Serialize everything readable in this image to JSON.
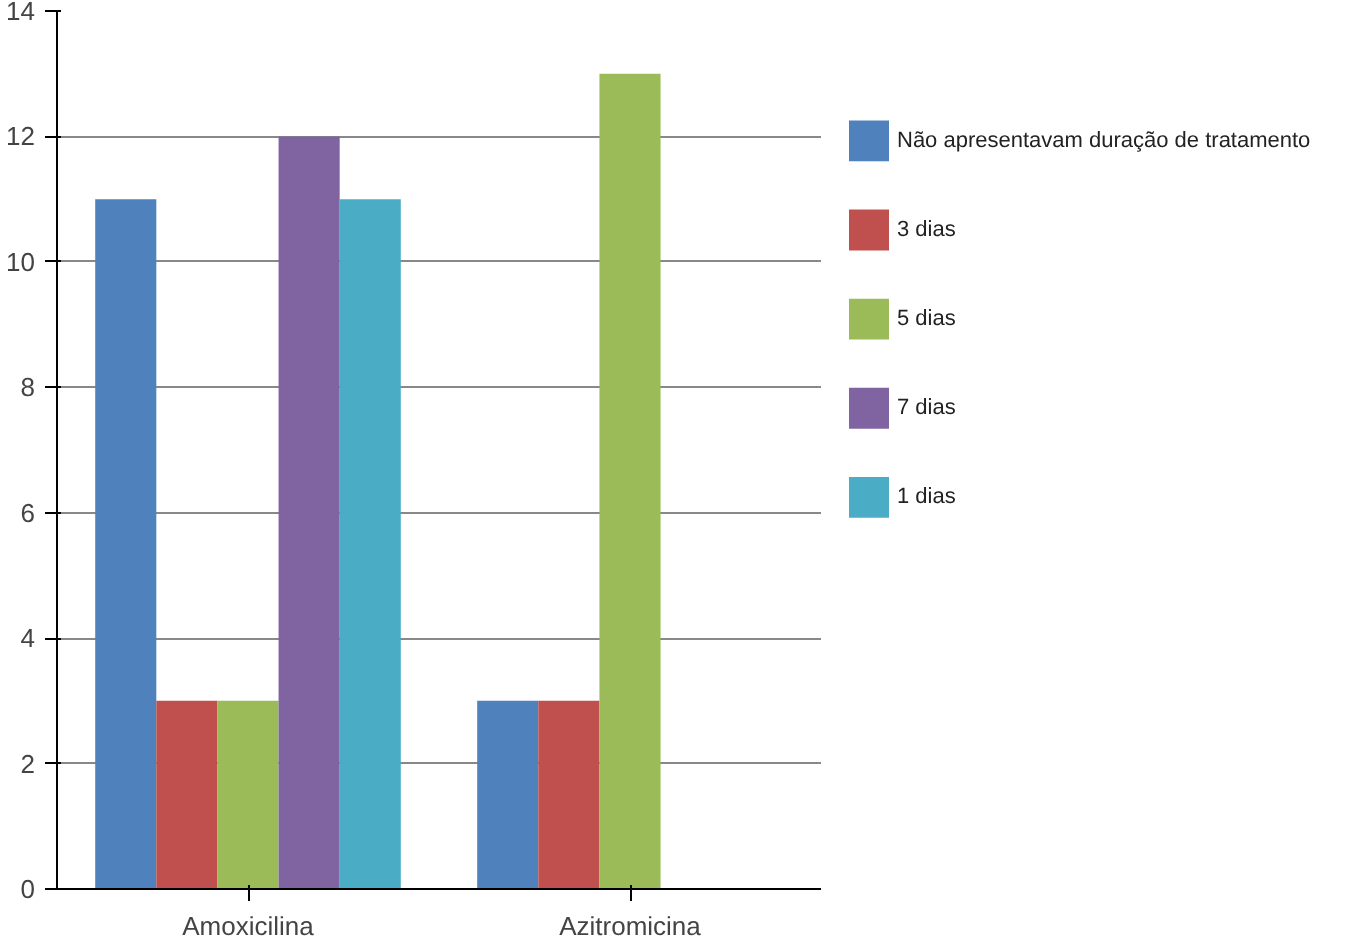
{
  "chart_data": {
    "type": "bar",
    "categories": [
      "Amoxicilina",
      "Azitromicina"
    ],
    "series": [
      {
        "name": "Não apresentavam duração de tratamento",
        "color": "#4f81bd",
        "values": [
          11,
          3
        ]
      },
      {
        "name": "3  dias",
        "color": "#c0504d",
        "values": [
          3,
          3
        ]
      },
      {
        "name": "5  dias",
        "color": "#9bbb59",
        "values": [
          3,
          13
        ]
      },
      {
        "name": "7  dias",
        "color": "#8064a2",
        "values": [
          12,
          null
        ]
      },
      {
        "name": "1 dias",
        "color": "#4bacc6",
        "values": [
          11,
          null
        ]
      }
    ],
    "ylim": [
      0,
      14
    ],
    "yticks": [
      0,
      2,
      4,
      6,
      8,
      10,
      12,
      14
    ],
    "grid": "y",
    "legend": "right"
  }
}
